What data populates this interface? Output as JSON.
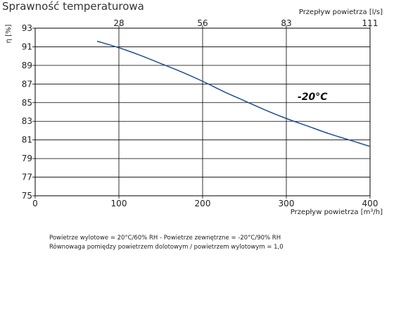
{
  "page": {
    "title": "Sprawność temperaturowa",
    "notes": [
      "Powietrze wylotowe = 20°C/60% RH - Powietrze zewnętrzne = -20°C/90% RH",
      "Równowaga pomiędzy powietrzem dolotowym / powietrzem wylotowym = 1,0"
    ]
  },
  "colors": {
    "curve": "#1f4e94",
    "axis": "#000000",
    "grid": "#000000"
  },
  "chart_data": {
    "type": "line",
    "title": "Sprawność temperaturowa",
    "xlabel": "Przepływ powietrza [m³/h]",
    "ylabel": "η [%]",
    "x2label": "Przepływ powietrza [l/s]",
    "xlim": [
      0,
      400
    ],
    "ylim": [
      75,
      93
    ],
    "x_ticks": [
      "0",
      "100",
      "200",
      "300",
      "400"
    ],
    "x_tick_values": [
      0,
      100,
      200,
      300,
      400
    ],
    "y_ticks": [
      "75",
      "77",
      "79",
      "81",
      "83",
      "85",
      "87",
      "89",
      "91",
      "93"
    ],
    "y_tick_values": [
      75,
      77,
      79,
      81,
      83,
      85,
      87,
      89,
      91,
      93
    ],
    "x2_ticks": [
      "28",
      "56",
      "83",
      "111"
    ],
    "x2_tick_values": [
      100,
      200,
      300,
      400
    ],
    "grid": true,
    "series": [
      {
        "name": "-20°C",
        "x": [
          74,
          100,
          125,
          150,
          175,
          200,
          225,
          250,
          275,
          300,
          325,
          350,
          375,
          400
        ],
        "y": [
          91.6,
          90.9,
          90.1,
          89.2,
          88.3,
          87.3,
          86.2,
          85.2,
          84.2,
          83.3,
          82.5,
          81.7,
          81.0,
          80.3
        ]
      }
    ],
    "annotation": {
      "text": "-20°C",
      "x": 305,
      "y": 84.6
    }
  }
}
